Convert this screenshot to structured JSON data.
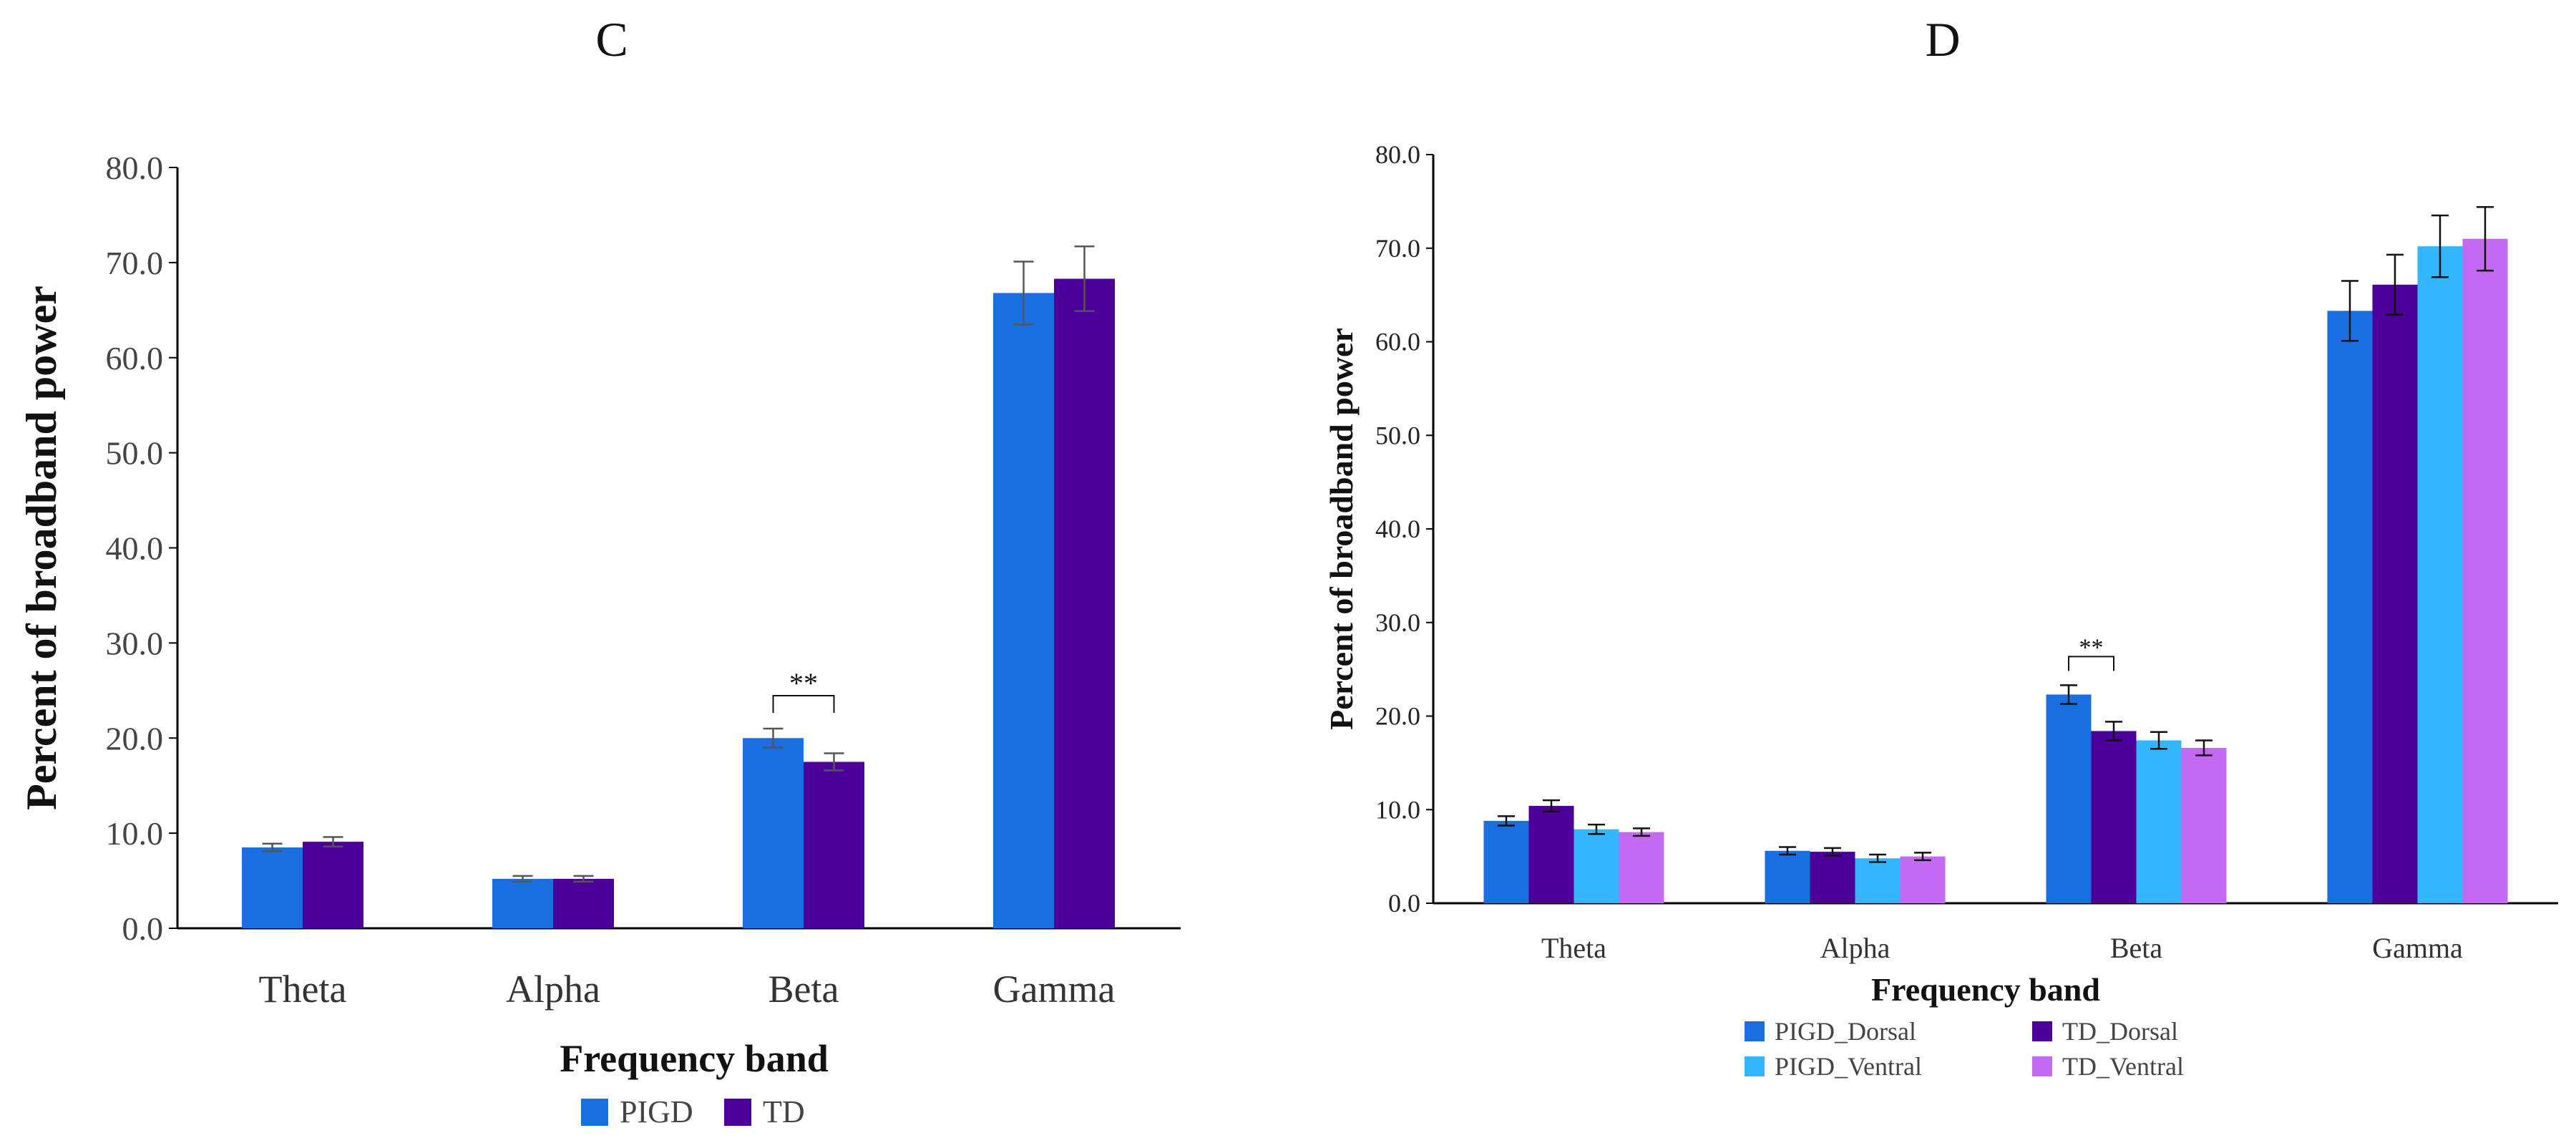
{
  "chart_data": [
    {
      "panel": "C",
      "type": "bar",
      "title": "C",
      "xlabel": "Frequency band",
      "ylabel": "Percent of broadband power",
      "ylim": [
        0,
        80
      ],
      "yticks": [
        "0.0",
        "10.0",
        "20.0",
        "30.0",
        "40.0",
        "50.0",
        "60.0",
        "70.0",
        "80.0"
      ],
      "categories": [
        "Theta",
        "Alpha",
        "Beta",
        "Gamma"
      ],
      "series": [
        {
          "name": "PIGD",
          "color": "#1A6FE0",
          "values": [
            8.5,
            5.2,
            20.0,
            66.8
          ],
          "errors": [
            0.4,
            0.3,
            1.0,
            3.3
          ]
        },
        {
          "name": "TD",
          "color": "#4C0099",
          "values": [
            9.1,
            5.2,
            17.5,
            68.3
          ],
          "errors": [
            0.5,
            0.3,
            0.9,
            3.4
          ]
        }
      ],
      "annotations": [
        {
          "text": "**",
          "category": "Beta",
          "between": [
            "PIGD",
            "TD"
          ]
        }
      ],
      "legend_position": "bottom-center"
    },
    {
      "panel": "D",
      "type": "bar",
      "title": "D",
      "xlabel": "Frequency band",
      "ylabel": "Percent of broadband power",
      "ylim": [
        0,
        80
      ],
      "yticks": [
        "0.0",
        "10.0",
        "20.0",
        "30.0",
        "40.0",
        "50.0",
        "60.0",
        "70.0",
        "80.0"
      ],
      "categories": [
        "Theta",
        "Alpha",
        "Beta",
        "Gamma"
      ],
      "series": [
        {
          "name": "PIGD_Dorsal",
          "color": "#1A6FE0",
          "values": [
            8.8,
            5.6,
            22.3,
            63.3
          ],
          "errors": [
            0.5,
            0.4,
            1.0,
            3.2
          ]
        },
        {
          "name": "TD_Dorsal",
          "color": "#4C0099",
          "values": [
            10.4,
            5.5,
            18.4,
            66.1
          ],
          "errors": [
            0.6,
            0.4,
            1.0,
            3.2
          ]
        },
        {
          "name": "PIGD_Ventral",
          "color": "#33B5FF",
          "values": [
            7.9,
            4.8,
            17.4,
            70.2
          ],
          "errors": [
            0.5,
            0.4,
            0.9,
            3.3
          ]
        },
        {
          "name": "TD_Ventral",
          "color": "#C46AF2",
          "values": [
            7.6,
            5.0,
            16.6,
            71.0
          ],
          "errors": [
            0.4,
            0.4,
            0.8,
            3.4
          ]
        }
      ],
      "annotations": [
        {
          "text": "**",
          "category": "Beta",
          "between": [
            "PIGD_Dorsal",
            "TD_Dorsal"
          ]
        }
      ],
      "legend_position": "bottom-center"
    }
  ]
}
